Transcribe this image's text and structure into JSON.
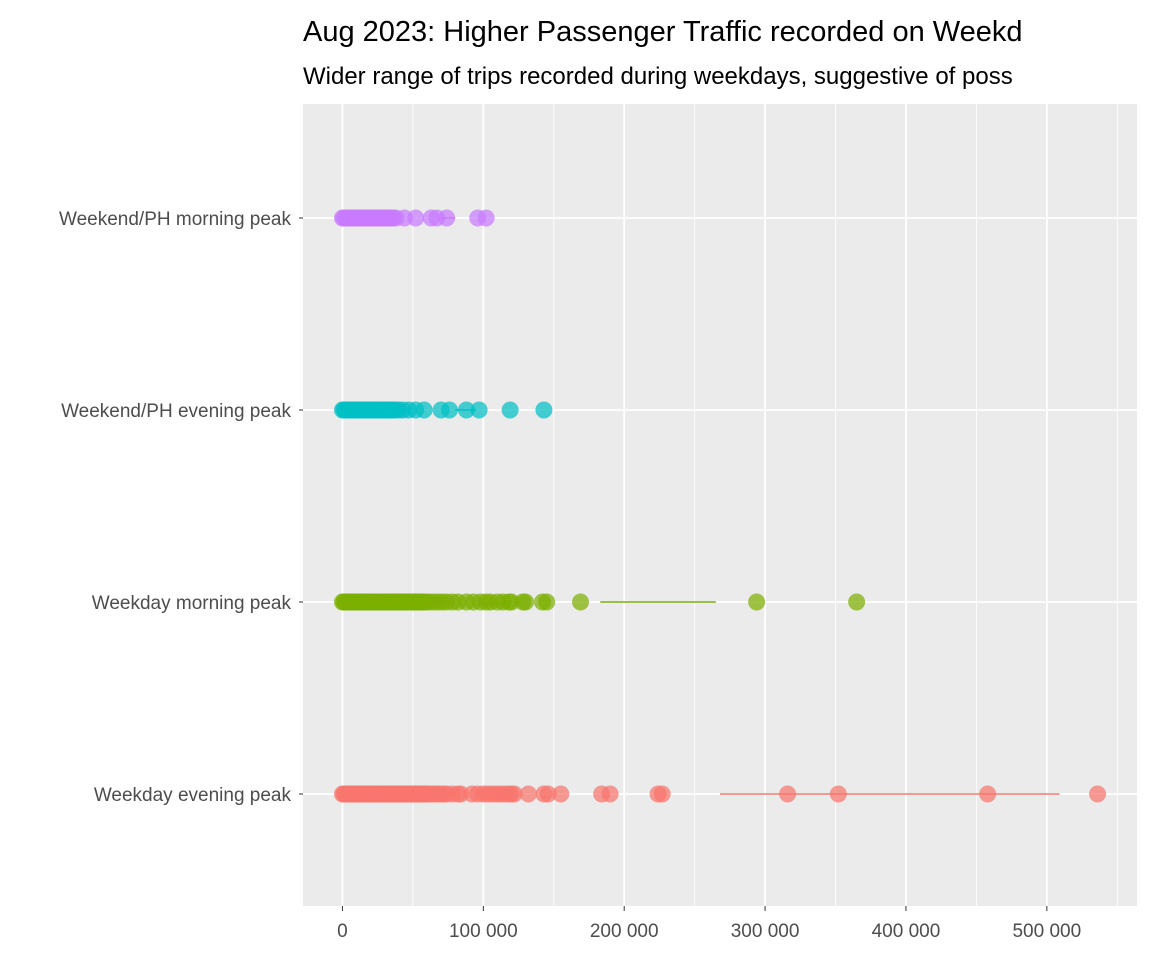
{
  "chart_data": {
    "type": "scatter",
    "title": "Aug 2023: Higher Passenger Traffic recorded on Weekd",
    "subtitle": "Wider range of trips recorded during weekdays, suggestive of poss",
    "xlabel": "",
    "ylabel": "",
    "xlim": [
      -28000,
      564000
    ],
    "xticks": [
      0,
      100000,
      200000,
      300000,
      400000,
      500000
    ],
    "xtick_labels": [
      "0",
      "100 000",
      "200 000",
      "300 000",
      "400 000",
      "500 000"
    ],
    "categories": [
      "Weekend/PH morning peak",
      "Weekend/PH evening peak",
      "Weekday morning peak",
      "Weekday evening peak"
    ],
    "grid": true,
    "legend": "none",
    "series": [
      {
        "category": "Weekend/PH morning peak",
        "color": "#C77CFF",
        "values": [
          0,
          1000,
          2000,
          3000,
          4000,
          5000,
          6000,
          7000,
          8000,
          9000,
          10000,
          11000,
          12000,
          13000,
          14000,
          15000,
          16000,
          17000,
          18000,
          19000,
          20000,
          21000,
          22000,
          23000,
          24000,
          25000,
          26000,
          27000,
          28000,
          29000,
          30000,
          31000,
          32000,
          33000,
          34000,
          35000,
          36000,
          38000,
          44000,
          52000,
          63000,
          67000,
          74000,
          96000,
          102000
        ],
        "line": [
          69000,
          80000
        ]
      },
      {
        "category": "Weekend/PH evening peak",
        "color": "#00BFC4",
        "values": [
          0,
          1000,
          2000,
          3000,
          4000,
          5000,
          6000,
          7000,
          8000,
          9000,
          10000,
          11000,
          12000,
          13000,
          14000,
          15000,
          16000,
          17000,
          18000,
          19000,
          20000,
          21000,
          22000,
          23000,
          24000,
          25000,
          26000,
          27000,
          28000,
          29000,
          30000,
          31000,
          32000,
          33000,
          34000,
          35000,
          36000,
          38000,
          40000,
          43000,
          47000,
          52000,
          58000,
          70000,
          76000,
          88000,
          97000,
          119000,
          143000
        ],
        "line": [
          80000,
          95000
        ]
      },
      {
        "category": "Weekday morning peak",
        "color": "#7CAE00",
        "values": [
          0,
          1000,
          2000,
          3000,
          4000,
          5000,
          6000,
          7000,
          8000,
          9000,
          10000,
          11000,
          12000,
          13000,
          14000,
          15000,
          16000,
          17000,
          18000,
          19000,
          20000,
          21000,
          22000,
          23000,
          24000,
          25000,
          26000,
          27000,
          28000,
          29000,
          30000,
          31000,
          32000,
          33000,
          34000,
          35000,
          36000,
          37000,
          38000,
          39000,
          40000,
          41000,
          42000,
          43000,
          44000,
          45000,
          46000,
          47000,
          48000,
          49000,
          50000,
          51000,
          52000,
          53000,
          54000,
          55000,
          56000,
          57000,
          58000,
          60000,
          62000,
          65000,
          68000,
          71000,
          74000,
          78000,
          82000,
          88000,
          93000,
          98000,
          102000,
          105000,
          110000,
          114000,
          118000,
          120000,
          128000,
          130000,
          142000,
          145000,
          169000,
          294000,
          365000
        ],
        "line": [
          183000,
          265000
        ]
      },
      {
        "category": "Weekday evening peak",
        "color": "#F8766D",
        "values": [
          0,
          1000,
          2000,
          3000,
          4000,
          5000,
          6000,
          7000,
          8000,
          9000,
          10000,
          11000,
          12000,
          13000,
          14000,
          15000,
          16000,
          17000,
          18000,
          19000,
          20000,
          21000,
          22000,
          23000,
          24000,
          25000,
          26000,
          27000,
          28000,
          29000,
          30000,
          31000,
          32000,
          33000,
          34000,
          35000,
          36000,
          37000,
          38000,
          39000,
          40000,
          41000,
          42000,
          43000,
          44000,
          45000,
          46000,
          47000,
          48000,
          49000,
          50000,
          51000,
          52000,
          53000,
          54000,
          55000,
          56000,
          57000,
          58000,
          59000,
          60000,
          62000,
          64000,
          66000,
          68000,
          70000,
          72000,
          74000,
          78000,
          82000,
          84000,
          92000,
          96000,
          100000,
          103000,
          106000,
          109000,
          112000,
          115000,
          118000,
          120000,
          122000,
          132000,
          143000,
          146000,
          155000,
          184000,
          190000,
          224000,
          227000,
          316000,
          352000,
          458000,
          536000
        ],
        "line": [
          268000,
          509000
        ]
      }
    ]
  }
}
